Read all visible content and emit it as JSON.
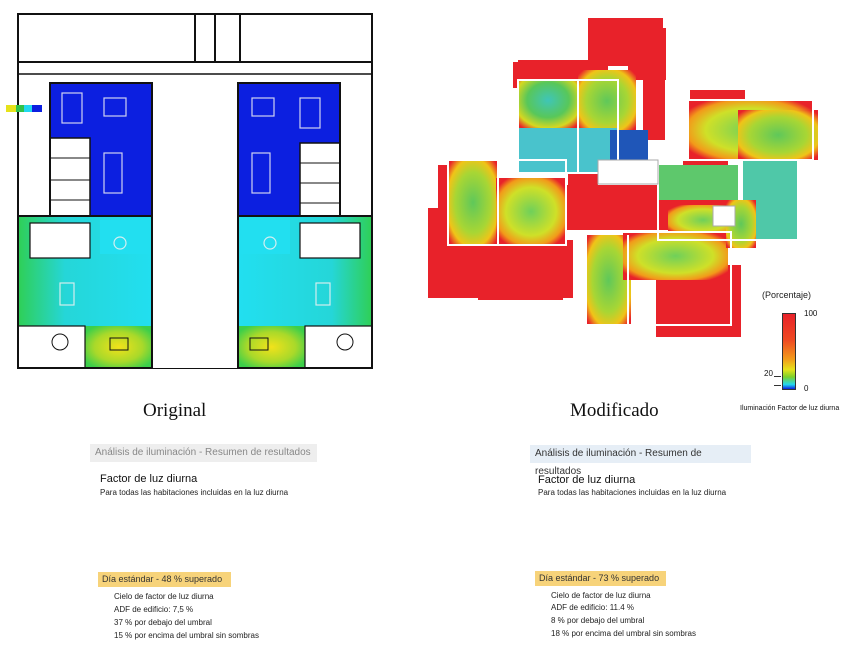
{
  "captions": {
    "original": "Original",
    "modified": "Modificado"
  },
  "legend": {
    "title": "(Porcentaje)",
    "max": "100",
    "threshold": "20",
    "min": "0",
    "footer": "Iluminación Factor de luz diurna"
  },
  "panels": [
    {
      "header": "Análisis de iluminación - Resumen de resultados",
      "title": "Factor de luz diurna",
      "subtitle": "Para todas las habitaciones incluidas en la luz diurna",
      "badge": "Día estándar   - 48 % superado",
      "stats": [
        "Cielo de factor de luz diurna",
        "ADF de edificio: 7,5 %",
        "37 % por debajo del umbral",
        "15 % por encima del umbral sin sombras"
      ]
    },
    {
      "header": "Análisis de iluminación - Resumen de resultados",
      "title": "Factor de luz diurna",
      "subtitle": "Para todas las habitaciones incluidas en la luz diurna",
      "badge": "Día estándar   - 73 % superado",
      "stats": [
        "Cielo de factor de luz diurna",
        "ADF de edificio: 11.4 %",
        "8 % por debajo del umbral",
        "18 % por encima del umbral sin sombras"
      ]
    }
  ],
  "colors": {
    "deep_blue": "#0c1fe0",
    "cyan": "#22d8f0",
    "green": "#32c24a",
    "yellow": "#e6e21a",
    "red": "#e8222a",
    "header_left_bg": "#eeeeee",
    "header_right_bg": "#e6eef6",
    "badge_bg": "#f7d37a"
  }
}
